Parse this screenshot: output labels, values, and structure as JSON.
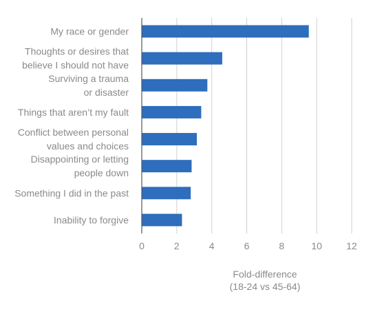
{
  "chart_data": {
    "type": "bar",
    "orientation": "horizontal",
    "categories": [
      [
        "My race or gender"
      ],
      [
        "Thoughts or desires that",
        "believe I should not have"
      ],
      [
        "Surviving a trauma",
        "or disaster"
      ],
      [
        "Things that aren’t my fault"
      ],
      [
        "Conflict between personal",
        "values and choices"
      ],
      [
        "Disappointing or letting",
        "people down"
      ],
      [
        "Something I did in the past"
      ],
      [
        "Inability to forgive"
      ]
    ],
    "values": [
      9.55,
      4.6,
      3.75,
      3.4,
      3.15,
      2.85,
      2.8,
      2.3
    ],
    "xlim": [
      0,
      12
    ],
    "xticks": [
      0,
      2,
      4,
      6,
      8,
      10,
      12
    ],
    "xlabel": [
      "Fold-difference",
      "(18-24 vs 45-64)"
    ],
    "grid": "vertical",
    "colors": {
      "bar": "#2f6dbd",
      "grid": "#cfcfcf",
      "axis": "#555555",
      "text": "#8a8a8a"
    }
  }
}
